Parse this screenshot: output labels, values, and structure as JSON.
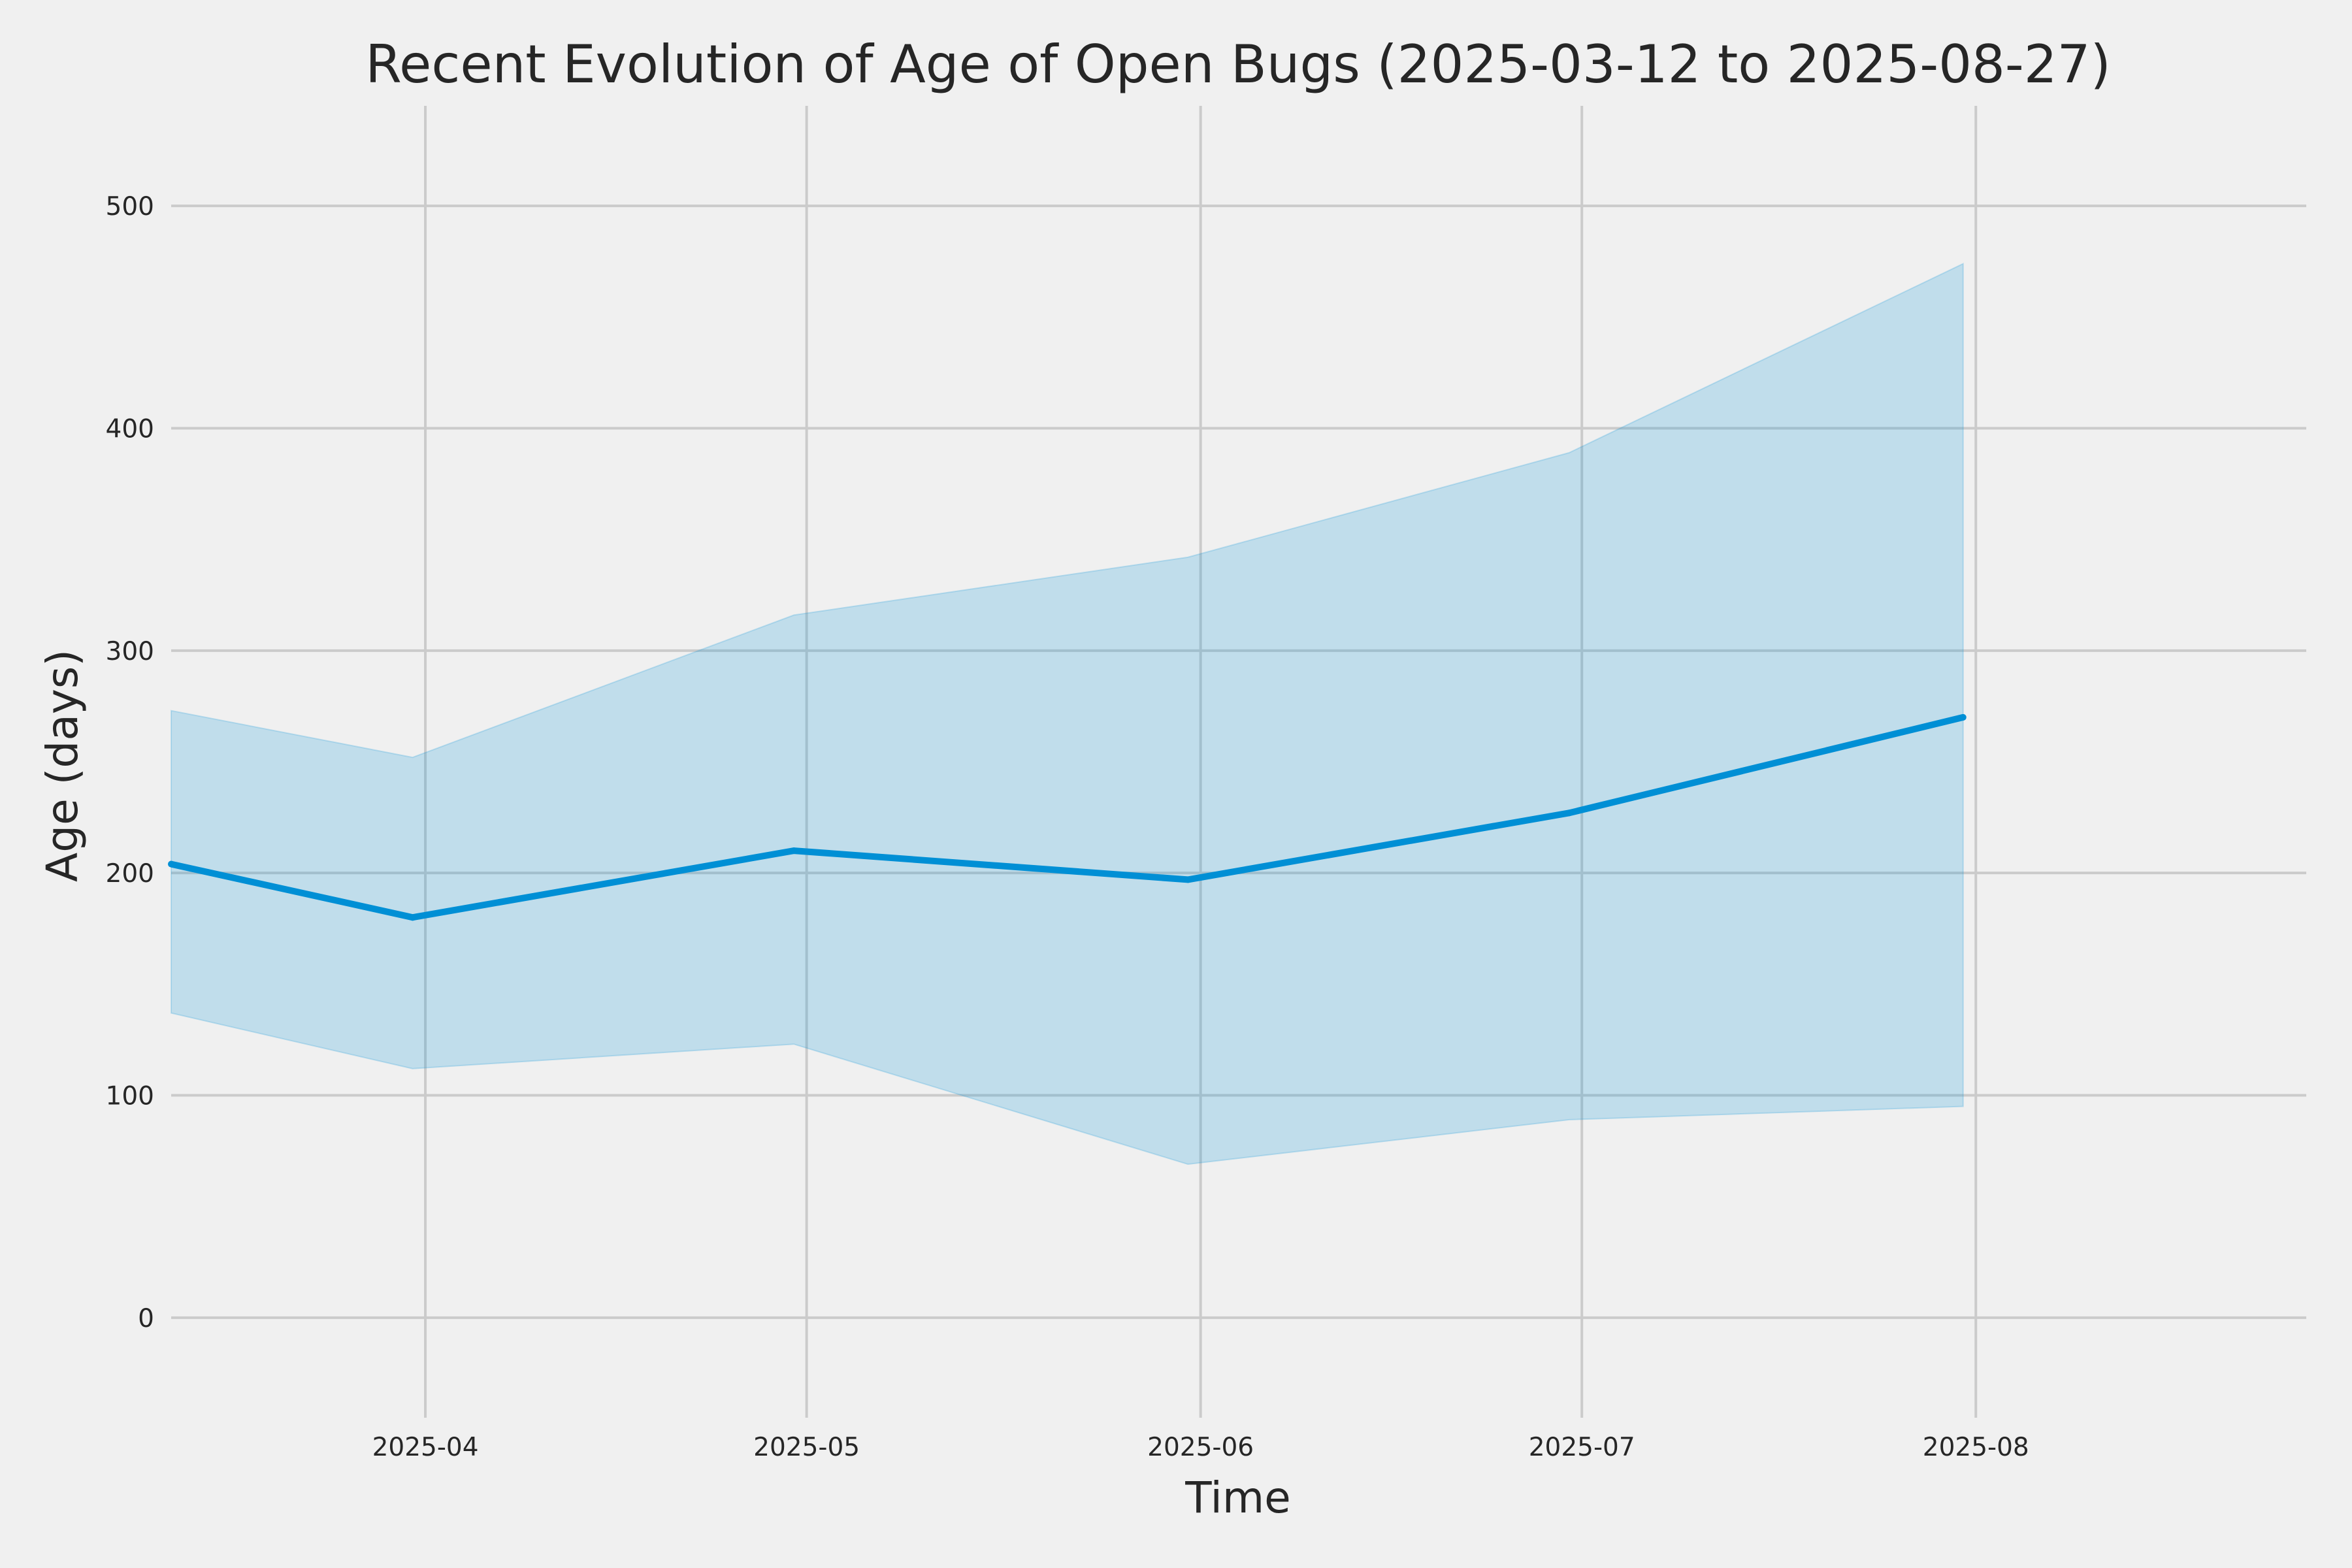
{
  "chart_data": {
    "type": "line",
    "title": "Recent Evolution of Age of Open Bugs (2025-03-12 to 2025-08-27)",
    "xlabel": "Time",
    "ylabel": "Age (days)",
    "xlim": [
      "2025-03-12",
      "2025-08-27"
    ],
    "ylim": [
      -45,
      545
    ],
    "x_ticks": [
      "2025-04",
      "2025-05",
      "2025-06",
      "2025-07",
      "2025-08"
    ],
    "y_ticks": [
      "0",
      "100",
      "200",
      "300",
      "400",
      "500"
    ],
    "grid": true,
    "series": [
      {
        "x": [
          "2025-03-12",
          "2025-03-31",
          "2025-04-30",
          "2025-05-31",
          "2025-06-30",
          "2025-07-31"
        ],
        "y": [
          204,
          180,
          210,
          197,
          227,
          270
        ],
        "y_lower": [
          137,
          112,
          123,
          69,
          89,
          95
        ],
        "y_upper": [
          273,
          252,
          316,
          342,
          389,
          474
        ],
        "color": "#008fd5",
        "band_color": "#008fd5"
      }
    ]
  }
}
